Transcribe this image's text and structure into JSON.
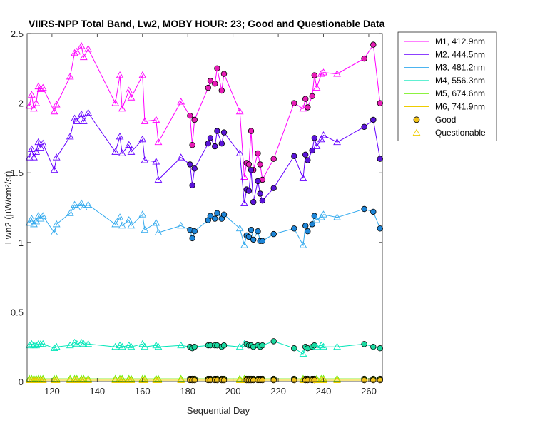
{
  "chart_data": {
    "type": "line",
    "title": "VIIRS-NPP Total Band, Lw2, MOBY HOUR: 23;  Good and Questionable Data",
    "xlabel": "Sequential Day",
    "ylabel": "Lwn2 (µW/cm²/sr)",
    "xlim": [
      109,
      266
    ],
    "ylim": [
      0,
      2.5
    ],
    "xticks": [
      120,
      140,
      160,
      180,
      200,
      220,
      240,
      260
    ],
    "yticks": [
      0,
      0.5,
      1,
      1.5,
      2,
      2.5
    ],
    "grid": false,
    "legend_position": "outside-top-right",
    "x": [
      110,
      111,
      112,
      113,
      114,
      115,
      116,
      121,
      122,
      128,
      130,
      131,
      133,
      134,
      136,
      148,
      150,
      151,
      154,
      155,
      160,
      161,
      166,
      167,
      177,
      181,
      182,
      183,
      189,
      190,
      192,
      193,
      195,
      196,
      203,
      205,
      206,
      207,
      208,
      209,
      211,
      212,
      213,
      218,
      227,
      231,
      232,
      233,
      235,
      236,
      237,
      239,
      240,
      246,
      258,
      262,
      265
    ],
    "good_mask": [
      0,
      0,
      0,
      0,
      0,
      0,
      0,
      0,
      0,
      0,
      0,
      0,
      0,
      0,
      0,
      0,
      0,
      0,
      0,
      0,
      0,
      0,
      0,
      0,
      0,
      1,
      1,
      1,
      1,
      1,
      1,
      1,
      1,
      1,
      0,
      0,
      1,
      1,
      1,
      1,
      1,
      1,
      1,
      1,
      1,
      0,
      1,
      1,
      1,
      1,
      0,
      0,
      0,
      0,
      1,
      1,
      1
    ],
    "series": [
      {
        "name": "M1, 412.9nm",
        "color": "#ff00ff",
        "good_fill": "#e81cb6",
        "values": [
          1.98,
          2.06,
          1.96,
          2.0,
          2.12,
          2.1,
          2.11,
          1.94,
          1.99,
          2.19,
          2.36,
          2.37,
          2.41,
          2.33,
          2.39,
          2.0,
          2.2,
          1.96,
          2.09,
          2.04,
          2.2,
          1.87,
          1.88,
          1.72,
          2.01,
          1.91,
          1.7,
          1.88,
          2.11,
          2.16,
          2.14,
          2.25,
          2.09,
          2.21,
          1.94,
          1.47,
          1.57,
          1.56,
          1.8,
          1.52,
          1.64,
          1.56,
          1.45,
          1.6,
          2.0,
          1.96,
          2.03,
          1.97,
          2.05,
          2.2,
          2.11,
          2.21,
          2.22,
          2.21,
          2.32,
          2.42,
          2.0
        ]
      },
      {
        "name": "M2, 444.5nm",
        "color": "#6600ff",
        "good_fill": "#5a14d8",
        "values": [
          1.61,
          1.67,
          1.61,
          1.65,
          1.72,
          1.68,
          1.71,
          1.52,
          1.61,
          1.76,
          1.89,
          1.87,
          1.92,
          1.87,
          1.93,
          1.65,
          1.76,
          1.64,
          1.7,
          1.65,
          1.74,
          1.59,
          1.58,
          1.45,
          1.61,
          1.56,
          1.41,
          1.53,
          1.71,
          1.75,
          1.69,
          1.8,
          1.71,
          1.79,
          1.64,
          1.28,
          1.38,
          1.37,
          1.52,
          1.29,
          1.44,
          1.35,
          1.3,
          1.39,
          1.62,
          1.46,
          1.63,
          1.59,
          1.66,
          1.75,
          1.69,
          1.74,
          1.77,
          1.72,
          1.83,
          1.88,
          1.6
        ]
      },
      {
        "name": "M3, 481.2nm",
        "color": "#33aaee",
        "good_fill": "#1e86d8",
        "values": [
          1.14,
          1.17,
          1.13,
          1.15,
          1.19,
          1.17,
          1.19,
          1.07,
          1.13,
          1.21,
          1.27,
          1.25,
          1.28,
          1.25,
          1.27,
          1.13,
          1.18,
          1.12,
          1.16,
          1.12,
          1.2,
          1.09,
          1.14,
          1.07,
          1.12,
          1.09,
          1.03,
          1.08,
          1.16,
          1.19,
          1.17,
          1.21,
          1.17,
          1.2,
          1.1,
          0.98,
          1.05,
          1.04,
          1.09,
          1.02,
          1.08,
          1.01,
          1.01,
          1.06,
          1.1,
          0.98,
          1.12,
          1.08,
          1.13,
          1.19,
          1.16,
          1.18,
          1.2,
          1.18,
          1.24,
          1.22,
          1.1
        ]
      },
      {
        "name": "M4, 556.3nm",
        "color": "#00e6b8",
        "good_fill": "#1ad9a0",
        "values": [
          0.26,
          0.27,
          0.26,
          0.26,
          0.27,
          0.27,
          0.27,
          0.24,
          0.25,
          0.26,
          0.28,
          0.27,
          0.28,
          0.27,
          0.27,
          0.25,
          0.26,
          0.25,
          0.26,
          0.25,
          0.27,
          0.25,
          0.26,
          0.25,
          0.26,
          0.25,
          0.24,
          0.25,
          0.26,
          0.26,
          0.26,
          0.26,
          0.25,
          0.26,
          0.25,
          0.27,
          0.27,
          0.26,
          0.26,
          0.25,
          0.26,
          0.25,
          0.26,
          0.29,
          0.24,
          0.2,
          0.25,
          0.24,
          0.25,
          0.26,
          0.25,
          0.26,
          0.25,
          0.25,
          0.27,
          0.25,
          0.24
        ]
      },
      {
        "name": "M5, 674.6nm",
        "color": "#66ee00",
        "good_fill": "#7ad800",
        "values": [
          0.02,
          0.02,
          0.02,
          0.02,
          0.02,
          0.02,
          0.02,
          0.02,
          0.02,
          0.02,
          0.02,
          0.02,
          0.02,
          0.02,
          0.02,
          0.02,
          0.02,
          0.02,
          0.02,
          0.02,
          0.02,
          0.02,
          0.02,
          0.02,
          0.02,
          0.02,
          0.02,
          0.02,
          0.02,
          0.02,
          0.02,
          0.02,
          0.02,
          0.02,
          0.02,
          0.02,
          0.02,
          0.02,
          0.02,
          0.02,
          0.02,
          0.02,
          0.02,
          0.02,
          0.02,
          0.02,
          0.02,
          0.02,
          0.02,
          0.02,
          0.02,
          0.02,
          0.02,
          0.02,
          0.02,
          0.02,
          0.02
        ]
      },
      {
        "name": "M6, 741.9nm",
        "color": "#eecc00",
        "good_fill": "#f2c318",
        "values": [
          0.01,
          0.01,
          0.01,
          0.01,
          0.01,
          0.01,
          0.01,
          0.01,
          0.01,
          0.01,
          0.01,
          0.01,
          0.01,
          0.01,
          0.01,
          0.01,
          0.01,
          0.01,
          0.01,
          0.01,
          0.01,
          0.01,
          0.01,
          0.01,
          0.01,
          0.01,
          0.01,
          0.01,
          0.01,
          0.01,
          0.01,
          0.01,
          0.01,
          0.01,
          0.01,
          0.01,
          0.01,
          0.01,
          0.01,
          0.01,
          0.01,
          0.01,
          0.01,
          0.01,
          0.01,
          0.01,
          0.01,
          0.01,
          0.01,
          0.01,
          0.01,
          0.01,
          0.01,
          0.01,
          0.01,
          0.01,
          0.01
        ]
      }
    ],
    "legend_markers": [
      {
        "label": "Good",
        "fill": "#f2c318",
        "stroke": "#000000"
      },
      {
        "label": "Questionable",
        "fill": "none",
        "stroke": "#eecc00"
      }
    ]
  }
}
